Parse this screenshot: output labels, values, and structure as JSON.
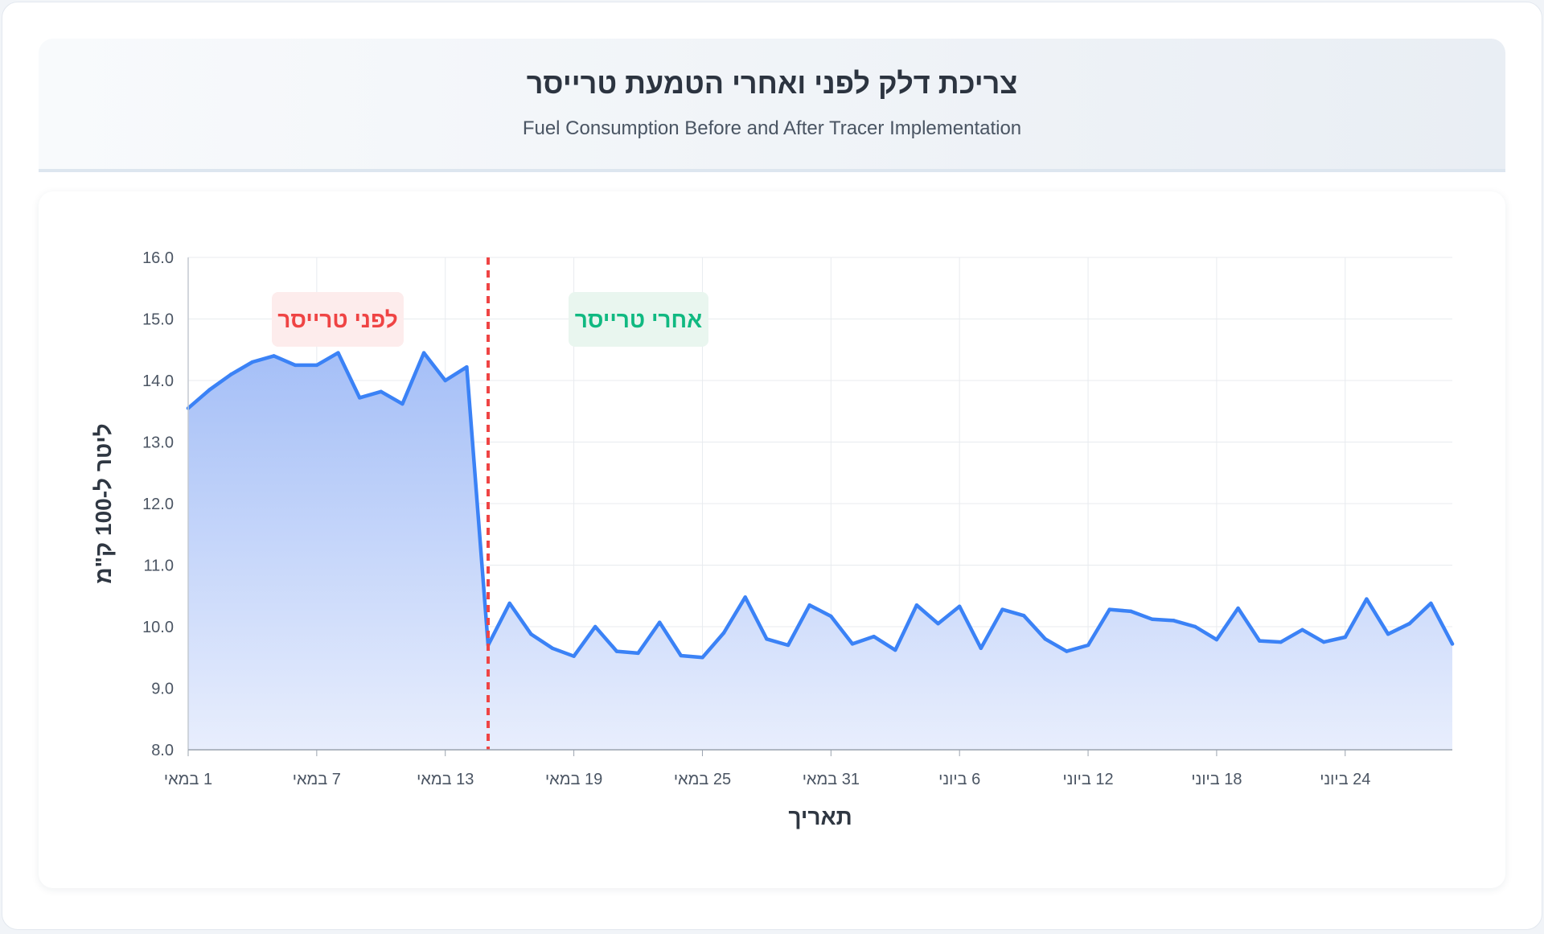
{
  "header": {
    "title": "צריכת דלק לפני ואחרי הטמעת טרייסר",
    "subtitle": "Fuel Consumption Before and After Tracer Implementation"
  },
  "colors": {
    "line": "#3b82f6",
    "area_top": "#a5bff7",
    "area_bottom": "#e8eefd",
    "divider": "#ef4444",
    "before_text": "#ef4444",
    "before_bg": "#fdecec",
    "after_text": "#10b981",
    "after_bg": "#e9f6ef",
    "grid": "#e8ebef"
  },
  "chart_data": {
    "type": "area",
    "title": "צריכת דלק לפני ואחרי הטמעת טרייסר",
    "subtitle": "Fuel Consumption Before and After Tracer Implementation",
    "xlabel": "תאריך",
    "ylabel": "ליטר ל-100 ק\"מ",
    "ylim": [
      8.0,
      16.0
    ],
    "y_ticks": [
      "16.0",
      "15.0",
      "14.0",
      "13.0",
      "12.0",
      "11.0",
      "10.0",
      "9.0",
      "8.0"
    ],
    "x_tick_labels": [
      "1 במאי",
      "7 במאי",
      "13 במאי",
      "19 במאי",
      "25 במאי",
      "31 במאי",
      "6 ביוני",
      "12 ביוני",
      "18 ביוני",
      "24 ביוני"
    ],
    "x_tick_day_index": [
      0,
      6,
      12,
      18,
      24,
      30,
      36,
      42,
      48,
      54
    ],
    "x_range_days": [
      0,
      59
    ],
    "grid": true,
    "divider_day_index": 14,
    "zones": {
      "before_label": "לפני טרייסר",
      "after_label": "אחרי טרייסר"
    },
    "series": [
      {
        "values": [
          13.55,
          13.85,
          14.1,
          14.3,
          14.4,
          14.25,
          14.25,
          14.45,
          13.72,
          13.82,
          13.62,
          14.45,
          14.0,
          14.22,
          9.7,
          10.38,
          9.88,
          9.65,
          9.52,
          10.0,
          9.6,
          9.57,
          10.07,
          9.53,
          9.5,
          9.9,
          10.48,
          9.8,
          9.7,
          10.35,
          10.17,
          9.72,
          9.84,
          9.62,
          10.35,
          10.05,
          10.33,
          9.65,
          10.28,
          10.18,
          9.8,
          9.6,
          9.7,
          10.28,
          10.25,
          10.12,
          10.1,
          10.0,
          9.79,
          10.3,
          9.77,
          9.75,
          9.95,
          9.75,
          9.83,
          10.45,
          9.88,
          10.05,
          10.38,
          9.72
        ]
      }
    ]
  }
}
